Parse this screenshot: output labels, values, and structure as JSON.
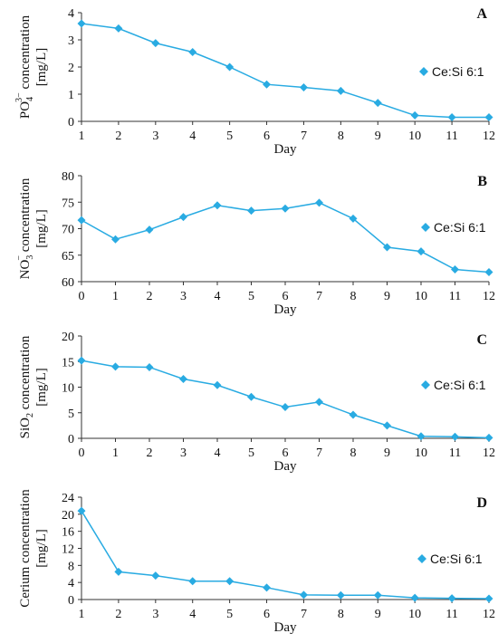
{
  "line_color": "#29ABE2",
  "axis_color": "#333333",
  "grid": false,
  "chart_data": [
    {
      "type": "line",
      "panel_label": "A",
      "ylabel_main": "PO",
      "ylabel_sub": "4",
      "ylabel_sup": "3−",
      "ylabel_rest": "concentration",
      "ylabel_unit": "[mg/L]",
      "xlabel": "Day",
      "legend_position": "right",
      "x": [
        1,
        2,
        3,
        4,
        5,
        6,
        7,
        8,
        9,
        10,
        11,
        12
      ],
      "xlim": [
        1,
        12
      ],
      "ylim": [
        0,
        4
      ],
      "yticks": [
        0,
        1,
        2,
        3,
        4
      ],
      "series": [
        {
          "name": "Ce:Si 6:1",
          "values": [
            3.6,
            3.42,
            2.88,
            2.55,
            2.0,
            1.36,
            1.25,
            1.12,
            0.68,
            0.22,
            0.15,
            0.15
          ]
        }
      ]
    },
    {
      "type": "line",
      "panel_label": "B",
      "ylabel_main": "NO",
      "ylabel_sub": "3",
      "ylabel_sup": "−",
      "ylabel_rest": "concentration",
      "ylabel_unit": "[mg/L]",
      "xlabel": "Day",
      "legend_position": "right",
      "x": [
        0,
        1,
        2,
        3,
        4,
        5,
        6,
        7,
        8,
        9,
        10,
        11,
        12
      ],
      "xlim": [
        0,
        12
      ],
      "ylim": [
        60,
        80
      ],
      "yticks": [
        60,
        65,
        70,
        75,
        80
      ],
      "series": [
        {
          "name": "Ce:Si 6:1",
          "values": [
            71.6,
            68.0,
            69.8,
            72.2,
            74.4,
            73.4,
            73.8,
            74.9,
            71.9,
            66.5,
            65.7,
            62.3,
            61.8
          ]
        }
      ]
    },
    {
      "type": "line",
      "panel_label": "C",
      "ylabel_main": "SiO",
      "ylabel_sub": "2",
      "ylabel_sup": "",
      "ylabel_rest": "concentration",
      "ylabel_unit": "[mg/L]",
      "xlabel": "Day",
      "legend_position": "right",
      "x": [
        0,
        1,
        2,
        3,
        4,
        5,
        6,
        7,
        8,
        9,
        10,
        11,
        12
      ],
      "xlim": [
        0,
        12
      ],
      "ylim": [
        0,
        20
      ],
      "yticks": [
        0,
        5,
        10,
        15,
        20
      ],
      "series": [
        {
          "name": "Ce:Si 6:1",
          "values": [
            15.2,
            14.0,
            13.9,
            11.6,
            10.4,
            8.1,
            6.1,
            7.1,
            4.6,
            2.5,
            0.4,
            0.3,
            0.1
          ]
        }
      ]
    },
    {
      "type": "line",
      "panel_label": "D",
      "ylabel_main": "Cerium",
      "ylabel_sub": "",
      "ylabel_sup": "",
      "ylabel_rest": "concentration",
      "ylabel_unit": "[mg/L]",
      "xlabel": "Day",
      "legend_position": "right",
      "x": [
        1,
        2,
        3,
        4,
        5,
        6,
        7,
        8,
        9,
        10,
        11,
        12
      ],
      "xlim": [
        1,
        12
      ],
      "ylim": [
        0,
        24
      ],
      "yticks": [
        0,
        4,
        8,
        12,
        16,
        20,
        24
      ],
      "series": [
        {
          "name": "Ce:Si 6:1",
          "values": [
            20.8,
            6.5,
            5.6,
            4.3,
            4.3,
            2.8,
            1.1,
            1.0,
            1.0,
            0.4,
            0.3,
            0.2
          ]
        }
      ]
    }
  ]
}
